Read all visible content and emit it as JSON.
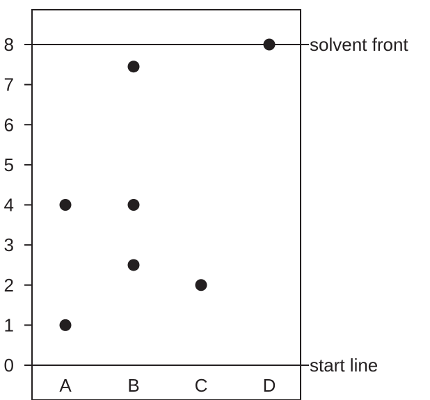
{
  "chart_data": {
    "type": "scatter",
    "title": "",
    "xlabel": "",
    "ylabel": "",
    "categories": [
      "A",
      "B",
      "C",
      "D"
    ],
    "ylim": [
      0,
      8
    ],
    "y_ticks": [
      "0",
      "1",
      "2",
      "3",
      "4",
      "5",
      "6",
      "7",
      "8"
    ],
    "points": [
      {
        "x": "A",
        "y": 4
      },
      {
        "x": "A",
        "y": 1
      },
      {
        "x": "B",
        "y": 7.45
      },
      {
        "x": "B",
        "y": 4
      },
      {
        "x": "B",
        "y": 2.5
      },
      {
        "x": "C",
        "y": 2
      },
      {
        "x": "D",
        "y": 8
      }
    ],
    "reference_lines": [
      {
        "y": 8,
        "label": "solvent front"
      },
      {
        "y": 0,
        "label": "start line"
      }
    ],
    "grid": false,
    "colors": {
      "ink": "#231f20",
      "background": "#ffffff"
    }
  }
}
